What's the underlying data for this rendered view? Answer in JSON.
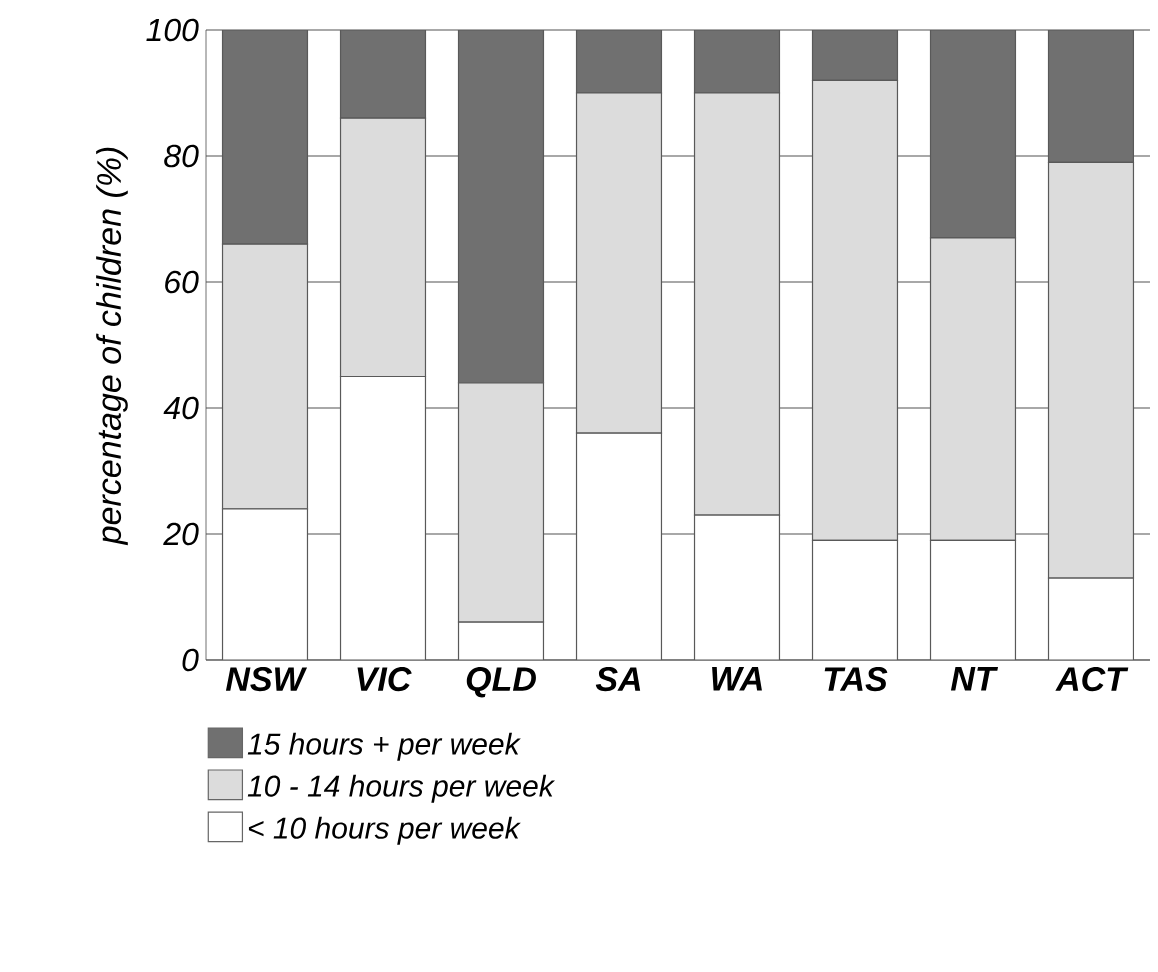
{
  "chart_data": {
    "type": "bar",
    "stacked": true,
    "ylabel": "percentage of children (%)",
    "categories": [
      "NSW",
      "VIC",
      "QLD",
      "SA",
      "WA",
      "TAS",
      "NT",
      "ACT"
    ],
    "series": [
      {
        "name": "< 10 hours per week",
        "color": "#ffffff",
        "values": [
          24,
          45,
          6,
          36,
          23,
          19,
          19,
          13
        ]
      },
      {
        "name": "10 - 14 hours per week",
        "color": "#dcdcdc",
        "values": [
          42,
          41,
          38,
          54,
          67,
          73,
          48,
          66
        ]
      },
      {
        "name": "15 hours + per week",
        "color": "#707070",
        "values": [
          34,
          14,
          56,
          10,
          10,
          8,
          33,
          21
        ]
      }
    ],
    "ylim": [
      0,
      100
    ],
    "yticks": [
      0,
      20,
      40,
      60,
      80,
      100
    ],
    "grid": "y",
    "legend": "bottom left"
  }
}
